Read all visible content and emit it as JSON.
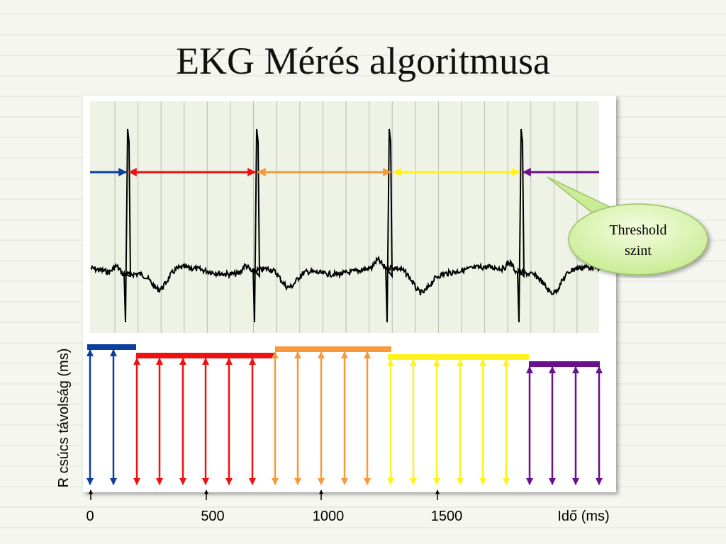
{
  "header": {
    "title": "EKG Mérés algoritmusa"
  },
  "callout": {
    "lines": [
      "Threshold",
      "szint"
    ]
  },
  "axis": {
    "y_label": "R csúcs távolság  (ms)",
    "x_label": "Idő (ms)",
    "ticks": [
      0,
      500,
      1000,
      1500
    ]
  }
}
